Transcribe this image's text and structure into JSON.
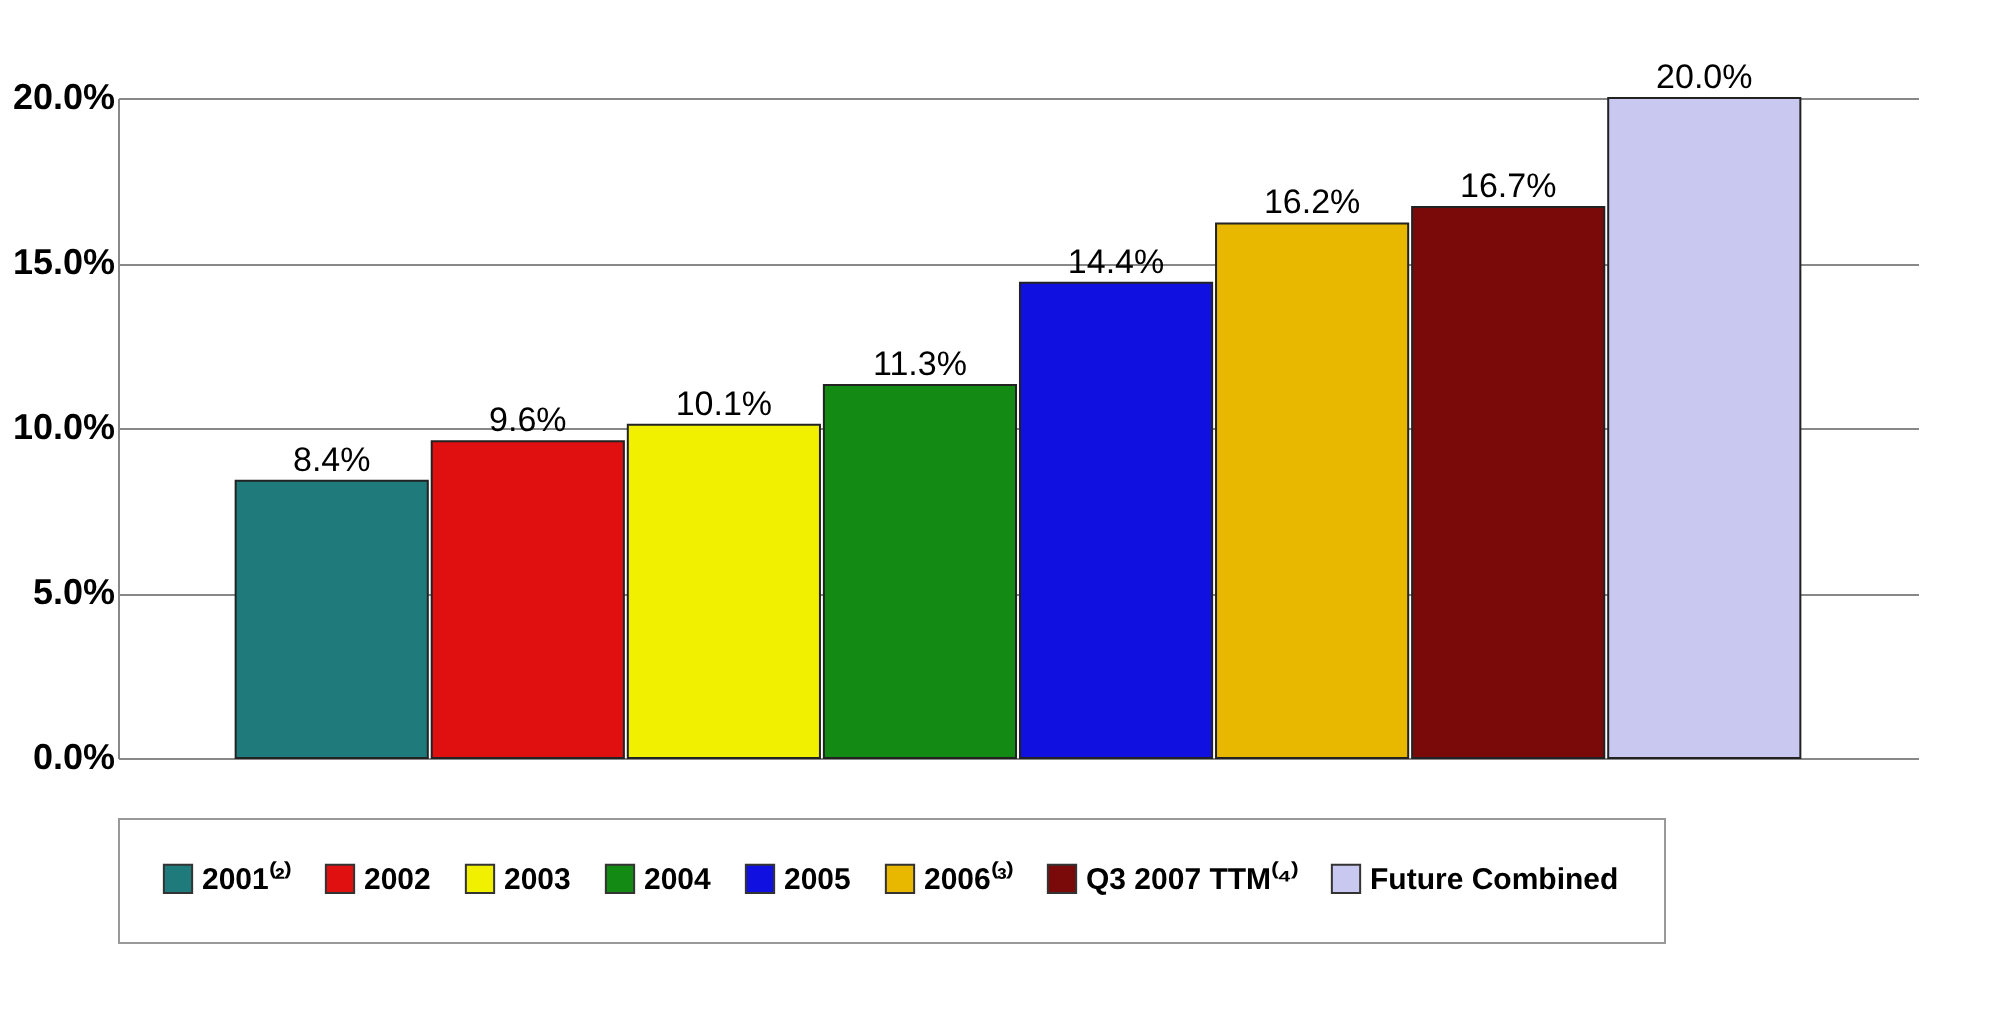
{
  "chart_data": {
    "type": "bar",
    "categories": [
      null,
      null,
      null,
      null,
      null,
      null,
      null,
      null
    ],
    "series": [
      {
        "name": "2001⁽²⁾",
        "color": "#1f7b7b",
        "values": [
          8.4,
          null,
          null,
          null,
          null,
          null,
          null,
          null
        ],
        "value_labels": [
          "8.4%",
          null,
          null,
          null,
          null,
          null,
          null,
          null
        ]
      },
      {
        "name": "2002",
        "color": "#e01010",
        "values": [
          null,
          9.6,
          null,
          null,
          null,
          null,
          null,
          null
        ],
        "value_labels": [
          null,
          "9.6%",
          null,
          null,
          null,
          null,
          null,
          null
        ]
      },
      {
        "name": "2003",
        "color": "#f0f000",
        "values": [
          null,
          null,
          10.1,
          null,
          null,
          null,
          null,
          null
        ],
        "value_labels": [
          null,
          null,
          "10.1%",
          null,
          null,
          null,
          null,
          null
        ]
      },
      {
        "name": "2004",
        "color": "#138a13",
        "values": [
          null,
          null,
          null,
          11.3,
          null,
          null,
          null,
          null
        ],
        "value_labels": [
          null,
          null,
          null,
          "11.3%",
          null,
          null,
          null,
          null
        ]
      },
      {
        "name": "2005",
        "color": "#1010e0",
        "values": [
          null,
          null,
          null,
          null,
          14.4,
          null,
          null,
          null
        ],
        "value_labels": [
          null,
          null,
          null,
          null,
          "14.4%",
          null,
          null,
          null
        ]
      },
      {
        "name": "2006⁽³⁾",
        "color": "#e8b800",
        "values": [
          null,
          null,
          null,
          null,
          null,
          16.2,
          null,
          null
        ],
        "value_labels": [
          null,
          null,
          null,
          null,
          null,
          "16.2%",
          null,
          null
        ]
      },
      {
        "name": "Q3 2007 TTM⁽⁴⁾",
        "color": "#7a0a0a",
        "values": [
          null,
          null,
          null,
          null,
          null,
          null,
          16.7,
          null
        ],
        "value_labels": [
          null,
          null,
          null,
          null,
          null,
          null,
          "16.7%",
          null
        ]
      },
      {
        "name": "Future Combined",
        "color": "#c8c8f0",
        "values": [
          null,
          null,
          null,
          null,
          null,
          null,
          null,
          20.0
        ],
        "value_labels": [
          null,
          null,
          null,
          null,
          null,
          null,
          null,
          "20.0%"
        ]
      }
    ],
    "ylim": [
      0,
      20
    ],
    "yticks": [
      {
        "value": 0,
        "label": "0.0%"
      },
      {
        "value": 5,
        "label": "5.0%"
      },
      {
        "value": 10,
        "label": "10.0%"
      },
      {
        "value": 15,
        "label": "15.0%"
      },
      {
        "value": 20,
        "label": "20.0%"
      }
    ],
    "grid": true,
    "legend": "bottom",
    "tick_labels": "y"
  }
}
